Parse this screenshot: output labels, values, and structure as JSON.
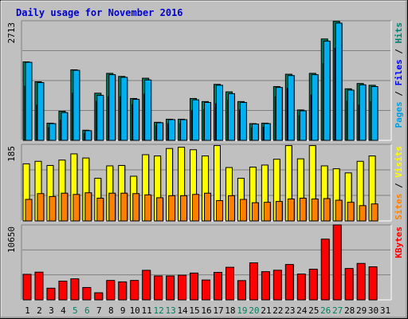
{
  "title": "Daily usage for November 2016",
  "chart_data": [
    {
      "type": "bar",
      "panel": "top",
      "ymax_label": "2713",
      "ylim": [
        0,
        2713
      ],
      "right_label_parts": [
        {
          "text": "Pages",
          "color": "#00a0e0"
        },
        {
          "text": " / ",
          "color": "#000000"
        },
        {
          "text": "Files",
          "color": "#0000ff"
        },
        {
          "text": " / ",
          "color": "#000000"
        },
        {
          "text": "Hits",
          "color": "#008070"
        }
      ],
      "categories": [
        "1",
        "2",
        "3",
        "4",
        "5",
        "6",
        "7",
        "8",
        "9",
        "10",
        "11",
        "12",
        "13",
        "14",
        "15",
        "16",
        "17",
        "18",
        "19",
        "20",
        "21",
        "22",
        "23",
        "24",
        "25",
        "26",
        "27",
        "28",
        "29",
        "30",
        "31"
      ],
      "series": [
        {
          "name": "Hits",
          "color": "#008060",
          "values": [
            1780,
            1330,
            390,
            660,
            1600,
            230,
            1070,
            1520,
            1450,
            950,
            1410,
            410,
            480,
            480,
            950,
            880,
            1270,
            1100,
            880,
            380,
            390,
            1220,
            1500,
            690,
            1520,
            2300,
            2700,
            1170,
            1290,
            1250,
            0
          ]
        },
        {
          "name": "Files",
          "color": "#0000ff",
          "values": [
            1230,
            800,
            290,
            460,
            1070,
            150,
            890,
            990,
            990,
            810,
            1050,
            330,
            380,
            380,
            680,
            700,
            830,
            910,
            690,
            280,
            300,
            990,
            1180,
            560,
            1030,
            1740,
            2090,
            890,
            800,
            880,
            0
          ]
        },
        {
          "name": "Pages",
          "color": "#00b0f0",
          "values": [
            1770,
            1310,
            380,
            630,
            1590,
            220,
            1020,
            1490,
            1430,
            930,
            1370,
            400,
            470,
            470,
            920,
            860,
            1250,
            1060,
            860,
            370,
            380,
            1200,
            1470,
            670,
            1490,
            2250,
            2660,
            1140,
            1260,
            1220,
            0
          ]
        }
      ]
    },
    {
      "type": "bar",
      "panel": "middle",
      "ymax_label": "185",
      "ylim": [
        0,
        185
      ],
      "right_label_parts": [
        {
          "text": "Sites",
          "color": "#ff8000"
        },
        {
          "text": " / ",
          "color": "#000000"
        },
        {
          "text": "Visits",
          "color": "#ffff00"
        }
      ],
      "categories": [
        "1",
        "2",
        "3",
        "4",
        "5",
        "6",
        "7",
        "8",
        "9",
        "10",
        "11",
        "12",
        "13",
        "14",
        "15",
        "16",
        "17",
        "18",
        "19",
        "20",
        "21",
        "22",
        "23",
        "24",
        "25",
        "26",
        "27",
        "28",
        "29",
        "30",
        "31"
      ],
      "series": [
        {
          "name": "Visits",
          "color": "#ffff00",
          "values": [
            138,
            144,
            134,
            147,
            162,
            152,
            103,
            133,
            134,
            108,
            160,
            157,
            175,
            178,
            172,
            157,
            182,
            129,
            103,
            130,
            135,
            149,
            182,
            150,
            182,
            133,
            126,
            116,
            144,
            157,
            0
          ]
        },
        {
          "name": "Sites",
          "color": "#ff8000",
          "values": [
            52,
            66,
            59,
            67,
            64,
            68,
            55,
            67,
            67,
            66,
            63,
            56,
            61,
            61,
            64,
            67,
            49,
            61,
            52,
            44,
            45,
            47,
            53,
            55,
            53,
            54,
            50,
            45,
            37,
            41,
            0
          ]
        }
      ]
    },
    {
      "type": "bar",
      "panel": "bottom",
      "ymax_label": "10650",
      "ylim": [
        0,
        10650
      ],
      "right_label_parts": [
        {
          "text": "KBytes",
          "color": "#ff0000"
        }
      ],
      "categories": [
        "1",
        "2",
        "3",
        "4",
        "5",
        "6",
        "7",
        "8",
        "9",
        "10",
        "11",
        "12",
        "13",
        "14",
        "15",
        "16",
        "17",
        "18",
        "19",
        "20",
        "21",
        "22",
        "23",
        "24",
        "25",
        "26",
        "27",
        "28",
        "29",
        "30",
        "31"
      ],
      "series": [
        {
          "name": "KBytes",
          "color": "#ff0000",
          "values": [
            3630,
            3940,
            1660,
            2660,
            2990,
            1760,
            1010,
            2760,
            2560,
            2760,
            4200,
            3400,
            3400,
            3500,
            3810,
            2820,
            3910,
            4630,
            2740,
            5260,
            4010,
            4210,
            5030,
            3670,
            4360,
            8630,
            10650,
            4460,
            5180,
            4700,
            0
          ]
        }
      ]
    }
  ],
  "day_label_colors": {
    "weekday": "#000000",
    "weekend": "#008060"
  },
  "weekend_days": [
    "5",
    "6",
    "12",
    "13",
    "19",
    "20",
    "26",
    "27"
  ]
}
